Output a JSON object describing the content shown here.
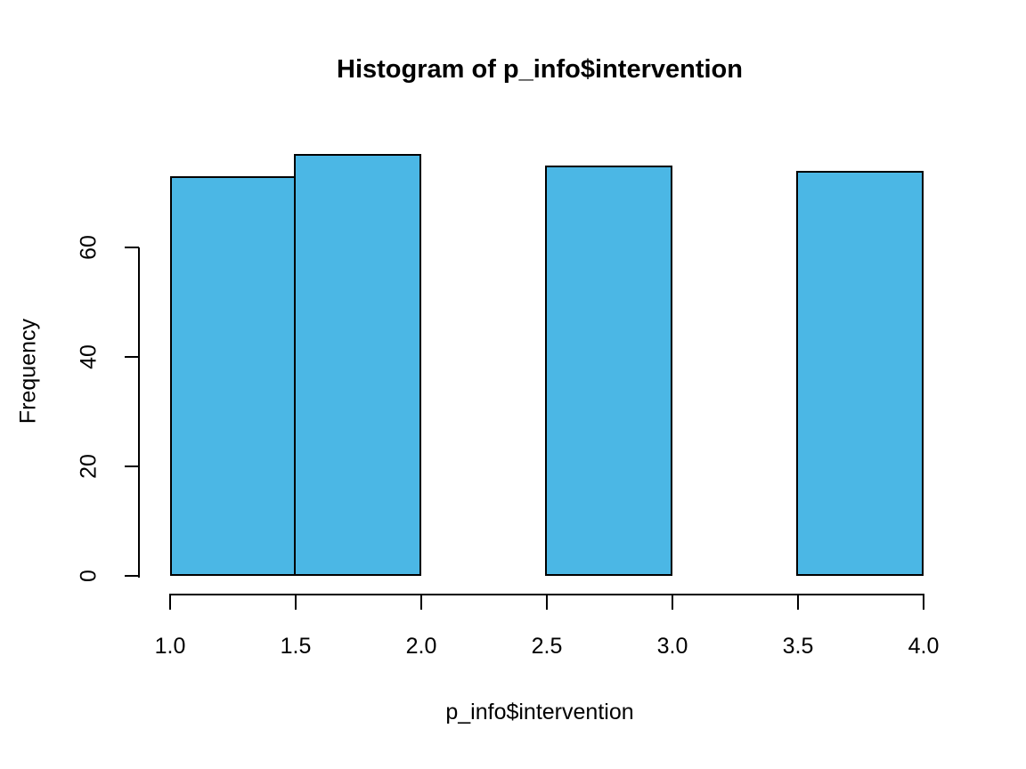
{
  "chart_data": {
    "type": "bar",
    "subtype": "histogram",
    "title": "Histogram of p_info$intervention",
    "xlabel": "p_info$intervention",
    "ylabel": "Frequency",
    "bins": [
      {
        "x0": 1.0,
        "x1": 1.5,
        "count": 73
      },
      {
        "x0": 1.5,
        "x1": 2.0,
        "count": 77
      },
      {
        "x0": 2.0,
        "x1": 2.5,
        "count": 0
      },
      {
        "x0": 2.5,
        "x1": 3.0,
        "count": 75
      },
      {
        "x0": 3.0,
        "x1": 3.5,
        "count": 0
      },
      {
        "x0": 3.5,
        "x1": 4.0,
        "count": 74
      }
    ],
    "x_ticks": [
      "1.0",
      "1.5",
      "2.0",
      "2.5",
      "3.0",
      "3.5",
      "4.0"
    ],
    "y_ticks": [
      "0",
      "20",
      "40",
      "60"
    ],
    "xlim": [
      1.0,
      4.0
    ],
    "ylim": [
      0,
      60
    ],
    "grid": false,
    "legend": "none",
    "bar_fill_color": "#4BB7E5",
    "bar_border_color": "#000000",
    "axis_color": "#000000"
  }
}
